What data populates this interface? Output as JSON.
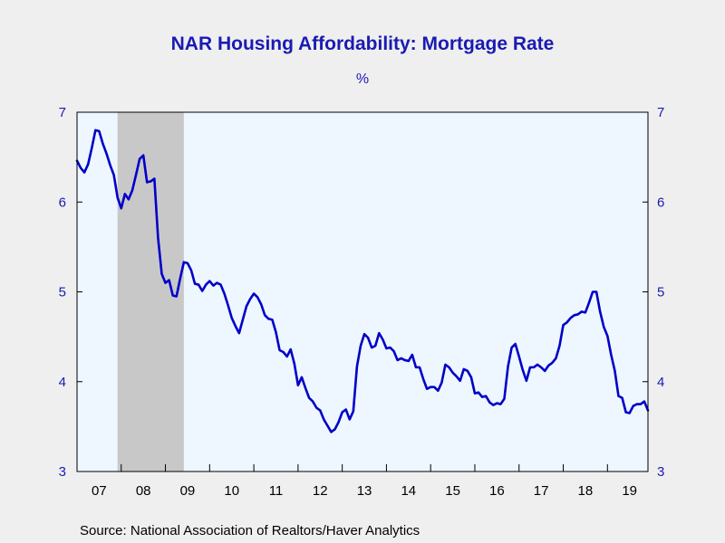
{
  "chart_data": {
    "type": "line",
    "title": "NAR Housing Affordability: Mortgage Rate",
    "subtitle": "%",
    "xlabel": "",
    "ylabel": "",
    "ylim": [
      3,
      7
    ],
    "yticks": [
      3,
      4,
      5,
      6,
      7
    ],
    "x_tick_labels": [
      "07",
      "08",
      "09",
      "10",
      "11",
      "12",
      "13",
      "14",
      "15",
      "16",
      "17",
      "18",
      "19"
    ],
    "x_start": "2007-01",
    "x_end": "2019-12",
    "recession": {
      "start": "2007-12",
      "end": "2009-06"
    },
    "grid": false,
    "series": [
      {
        "color": "#0000c8",
        "x": [
          "2007-01",
          "2007-02",
          "2007-03",
          "2007-04",
          "2007-05",
          "2007-06",
          "2007-07",
          "2007-08",
          "2007-09",
          "2007-10",
          "2007-11",
          "2007-12",
          "2008-01",
          "2008-02",
          "2008-03",
          "2008-04",
          "2008-05",
          "2008-06",
          "2008-07",
          "2008-08",
          "2008-09",
          "2008-10",
          "2008-11",
          "2008-12",
          "2009-01",
          "2009-02",
          "2009-03",
          "2009-04",
          "2009-05",
          "2009-06",
          "2009-07",
          "2009-08",
          "2009-09",
          "2009-10",
          "2009-11",
          "2009-12",
          "2010-01",
          "2010-02",
          "2010-03",
          "2010-04",
          "2010-05",
          "2010-06",
          "2010-07",
          "2010-08",
          "2010-09",
          "2010-10",
          "2010-11",
          "2010-12",
          "2011-01",
          "2011-02",
          "2011-03",
          "2011-04",
          "2011-05",
          "2011-06",
          "2011-07",
          "2011-08",
          "2011-09",
          "2011-10",
          "2011-11",
          "2011-12",
          "2012-01",
          "2012-02",
          "2012-03",
          "2012-04",
          "2012-05",
          "2012-06",
          "2012-07",
          "2012-08",
          "2012-09",
          "2012-10",
          "2012-11",
          "2012-12",
          "2013-01",
          "2013-02",
          "2013-03",
          "2013-04",
          "2013-05",
          "2013-06",
          "2013-07",
          "2013-08",
          "2013-09",
          "2013-10",
          "2013-11",
          "2013-12",
          "2014-01",
          "2014-02",
          "2014-03",
          "2014-04",
          "2014-05",
          "2014-06",
          "2014-07",
          "2014-08",
          "2014-09",
          "2014-10",
          "2014-11",
          "2014-12",
          "2015-01",
          "2015-02",
          "2015-03",
          "2015-04",
          "2015-05",
          "2015-06",
          "2015-07",
          "2015-08",
          "2015-09",
          "2015-10",
          "2015-11",
          "2015-12",
          "2016-01",
          "2016-02",
          "2016-03",
          "2016-04",
          "2016-05",
          "2016-06",
          "2016-07",
          "2016-08",
          "2016-09",
          "2016-10",
          "2016-11",
          "2016-12",
          "2017-01",
          "2017-02",
          "2017-03",
          "2017-04",
          "2017-05",
          "2017-06",
          "2017-07",
          "2017-08",
          "2017-09",
          "2017-10",
          "2017-11",
          "2017-12",
          "2018-01",
          "2018-02",
          "2018-03",
          "2018-04",
          "2018-05",
          "2018-06",
          "2018-07",
          "2018-08",
          "2018-09",
          "2018-10",
          "2018-11",
          "2018-12",
          "2019-01",
          "2019-02",
          "2019-03",
          "2019-04",
          "2019-05",
          "2019-06",
          "2019-07",
          "2019-08",
          "2019-09",
          "2019-10",
          "2019-11",
          "2019-12"
        ],
        "values": [
          6.46,
          6.38,
          6.33,
          6.42,
          6.6,
          6.8,
          6.79,
          6.65,
          6.54,
          6.41,
          6.3,
          6.05,
          5.93,
          6.09,
          6.03,
          6.13,
          6.3,
          6.48,
          6.52,
          6.22,
          6.23,
          6.26,
          5.6,
          5.2,
          5.1,
          5.13,
          4.96,
          4.95,
          5.15,
          5.33,
          5.32,
          5.24,
          5.09,
          5.08,
          5.01,
          5.08,
          5.12,
          5.07,
          5.1,
          5.08,
          4.98,
          4.85,
          4.71,
          4.62,
          4.54,
          4.69,
          4.84,
          4.92,
          4.98,
          4.94,
          4.86,
          4.74,
          4.7,
          4.69,
          4.55,
          4.35,
          4.33,
          4.28,
          4.36,
          4.2,
          3.96,
          4.05,
          3.93,
          3.82,
          3.78,
          3.71,
          3.68,
          3.58,
          3.51,
          3.44,
          3.47,
          3.55,
          3.66,
          3.69,
          3.58,
          3.67,
          4.17,
          4.4,
          4.53,
          4.49,
          4.38,
          4.4,
          4.54,
          4.47,
          4.37,
          4.38,
          4.34,
          4.24,
          4.26,
          4.24,
          4.23,
          4.3,
          4.16,
          4.16,
          4.03,
          3.92,
          3.94,
          3.94,
          3.9,
          3.99,
          4.19,
          4.16,
          4.1,
          4.06,
          4.01,
          4.14,
          4.12,
          4.05,
          3.87,
          3.88,
          3.83,
          3.84,
          3.77,
          3.74,
          3.76,
          3.75,
          3.81,
          4.17,
          4.38,
          4.42,
          4.28,
          4.13,
          4.01,
          4.16,
          4.16,
          4.19,
          4.16,
          4.12,
          4.18,
          4.21,
          4.26,
          4.4,
          4.63,
          4.66,
          4.71,
          4.74,
          4.75,
          4.78,
          4.77,
          4.88,
          5.0,
          5.0,
          4.78,
          4.61,
          4.51,
          4.3,
          4.12,
          3.84,
          3.82,
          3.66,
          3.65,
          3.73,
          3.75,
          3.75,
          3.78,
          3.68
        ]
      }
    ]
  },
  "footer": {
    "source": "Source:  National Association of Realtors/Haver Analytics"
  }
}
